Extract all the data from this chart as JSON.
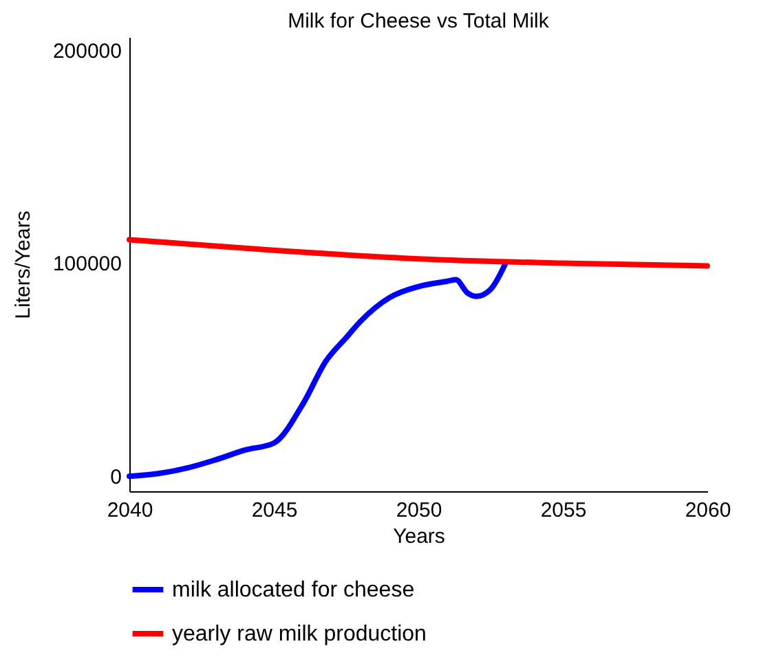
{
  "chart_data": {
    "type": "line",
    "title": "Milk for Cheese vs Total Milk",
    "xlabel": "Years",
    "ylabel": "Liters/Years",
    "xlim": [
      2040,
      2060
    ],
    "xticks": [
      2040,
      2045,
      2050,
      2055,
      2060
    ],
    "ylim": [
      -7000,
      206000
    ],
    "yticks": [
      0,
      100000,
      200000
    ],
    "grid": false,
    "legend": "bottom",
    "marker": "none",
    "line_style": "solid",
    "series": [
      {
        "name": "milk allocated for cheese",
        "color": "#0000ff",
        "x": [
          2040,
          2041,
          2042,
          2043,
          2044,
          2045,
          2046,
          2046.8,
          2047.5,
          2048,
          2049,
          2050,
          2051,
          2051.3,
          2051.7,
          2052,
          2052.5,
          2053
        ],
        "values": [
          0,
          1300,
          3900,
          7800,
          12300,
          15600,
          33800,
          54000,
          65000,
          72700,
          83800,
          89000,
          91500,
          92200,
          86000,
          84400,
          87700,
          99400
        ]
      },
      {
        "name": "yearly raw milk production",
        "color": "#ff0000",
        "x": [
          2040,
          2045,
          2050,
          2055,
          2060
        ],
        "values": [
          111000,
          106000,
          102000,
          100000,
          98700
        ]
      }
    ]
  }
}
